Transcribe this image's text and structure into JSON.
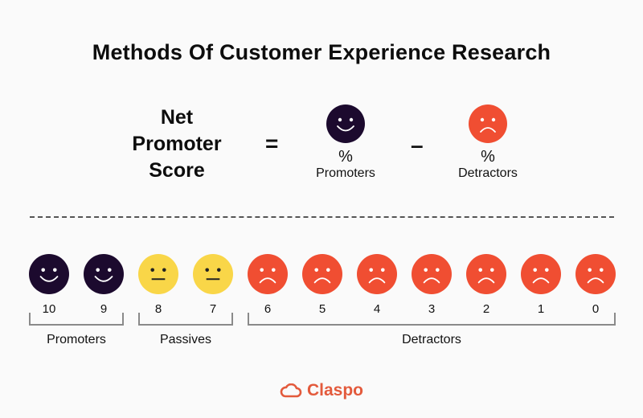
{
  "title": "Methods Of Customer Experience Research",
  "formula": {
    "lhs_lines": [
      "Net",
      "Promoter",
      "Score"
    ],
    "equals": "=",
    "minus": "–",
    "terms": [
      {
        "icon": "happy-face-icon",
        "color": "#1c0a2e",
        "percent": "%",
        "label": "Promoters"
      },
      {
        "icon": "sad-face-icon",
        "color": "#f04e32",
        "percent": "%",
        "label": "Detractors"
      }
    ]
  },
  "scale": {
    "items": [
      {
        "score": "10",
        "type": "promoter",
        "color": "#1c0a2e"
      },
      {
        "score": "9",
        "type": "promoter",
        "color": "#1c0a2e"
      },
      {
        "score": "8",
        "type": "passive",
        "color": "#f9d648"
      },
      {
        "score": "7",
        "type": "passive",
        "color": "#f9d648"
      },
      {
        "score": "6",
        "type": "detractor",
        "color": "#f04e32"
      },
      {
        "score": "5",
        "type": "detractor",
        "color": "#f04e32"
      },
      {
        "score": "4",
        "type": "detractor",
        "color": "#f04e32"
      },
      {
        "score": "3",
        "type": "detractor",
        "color": "#f04e32"
      },
      {
        "score": "2",
        "type": "detractor",
        "color": "#f04e32"
      },
      {
        "score": "1",
        "type": "detractor",
        "color": "#f04e32"
      },
      {
        "score": "0",
        "type": "detractor",
        "color": "#f04e32"
      }
    ],
    "groups": [
      {
        "label": "Promoters"
      },
      {
        "label": "Passives"
      },
      {
        "label": "Detractors"
      }
    ]
  },
  "brand": {
    "name": "Claspo",
    "color": "#e35a3c"
  }
}
